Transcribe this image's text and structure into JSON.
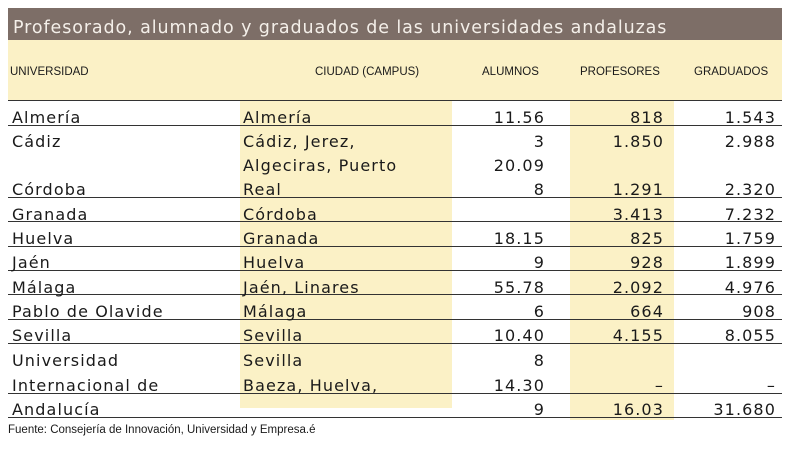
{
  "title": "Profesorado, alumnado y graduados de las universidades andaluzas",
  "headers": {
    "universidad": "UNIVERSIDAD",
    "ciudad": "CIUDAD (CAMPUS)",
    "alumnos": "ALUMNOS",
    "profesores": "PROFESORES",
    "graduados": "GRADUADOS"
  },
  "col_universidad": [
    "Almería",
    "Cádiz",
    "Córdoba",
    "Granada",
    "Huelva",
    "Jaén",
    "Málaga",
    "Pablo de Olavide",
    "Sevilla",
    "Universidad",
    "Internacional de",
    "Andalucía"
  ],
  "col_ciudad": [
    "Almería",
    "Cádiz, Jerez,",
    "Algeciras, Puerto",
    "Real",
    "Córdoba",
    "Granada",
    "Huelva",
    "Jaén, Linares",
    "Málaga",
    "Sevilla",
    "Sevilla",
    "Baeza, Huelva,"
  ],
  "col_alumnos": [
    "11.56",
    "3",
    "20.09",
    "8",
    "18.15",
    "9",
    "55.78",
    "6",
    "10.40",
    "8",
    "14.30",
    "9"
  ],
  "col_profesores": [
    "818",
    "1.850",
    "1.291",
    "3.413",
    "825",
    "928",
    "2.092",
    "664",
    "4.155",
    "–",
    "16.03"
  ],
  "col_graduados": [
    "1.543",
    "2.988",
    "2.320",
    "7.232",
    "1.759",
    "1.899",
    "4.976",
    "908",
    "8.055",
    "–",
    "31.680"
  ],
  "source": "Fuente: Consejería de Innovación, Universidad y Empresa.é",
  "colors": {
    "title_bg": "#7d6e67",
    "title_text": "#f4efe9",
    "shade": "#fbf1c6",
    "rule": "#333333"
  }
}
